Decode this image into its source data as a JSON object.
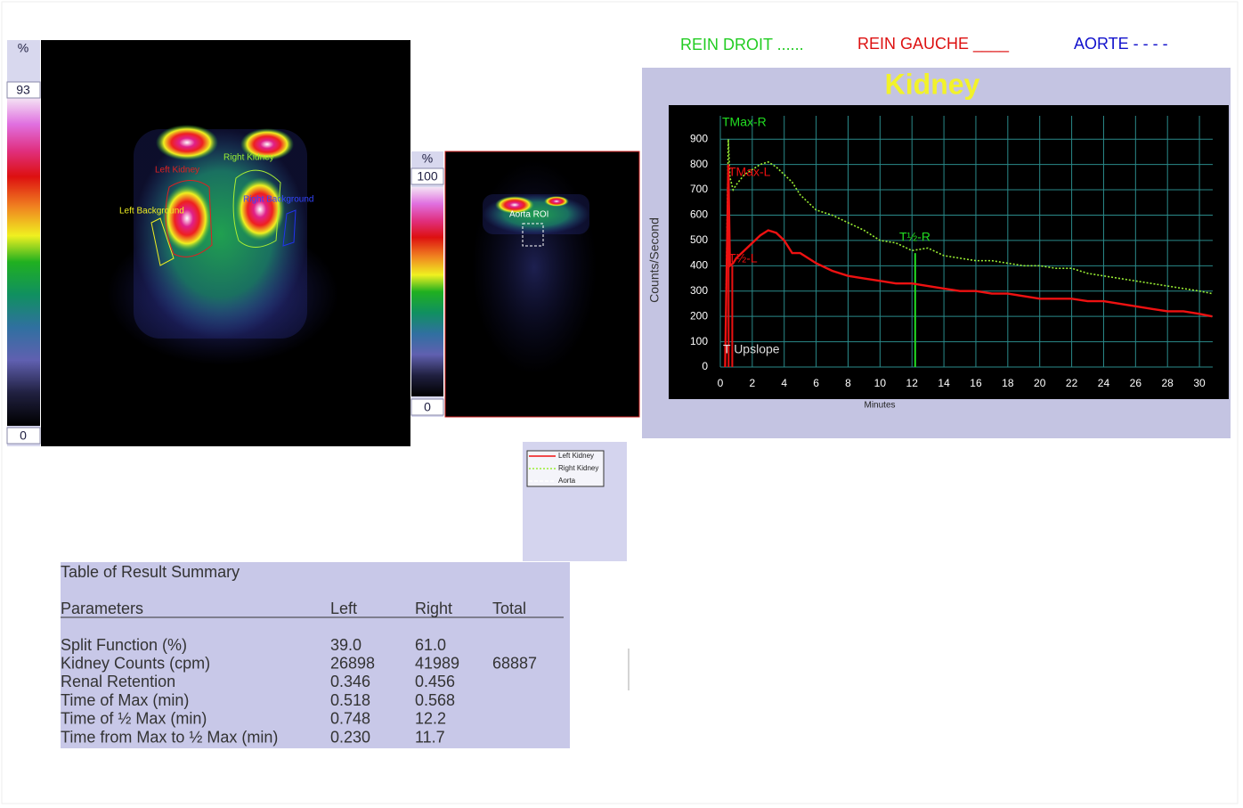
{
  "header": {
    "legend_labels": [
      {
        "text": "REIN DROIT ......",
        "color": "#22cc22"
      },
      {
        "text": "REIN GAUCHE ____",
        "color": "#dd1111"
      },
      {
        "text": "AORTE - - - -",
        "color": "#1111cc"
      }
    ]
  },
  "left_image": {
    "scale": {
      "unit": "%",
      "max": "93",
      "min": "0"
    },
    "roi_labels": [
      "Left Kidney",
      "Right Kidney",
      "Left Background",
      "Right Background"
    ]
  },
  "aorta_image": {
    "scale": {
      "unit": "%",
      "max": "100",
      "min": "0"
    },
    "roi_labels": [
      "Aorta ROI"
    ]
  },
  "chart_data": {
    "type": "line",
    "title": "Kidney",
    "y_label": "Counts/Second",
    "x_label": "Minutes",
    "x": [
      0.3,
      0.5,
      0.6,
      0.8,
      1,
      1.5,
      2,
      2.5,
      3,
      3.5,
      4,
      4.5,
      5,
      6,
      7,
      8,
      9,
      10,
      11,
      12,
      13,
      14,
      15,
      16,
      17,
      18,
      19,
      20,
      21,
      22,
      23,
      24,
      25,
      26,
      27,
      28,
      29,
      30,
      30.8
    ],
    "series": [
      {
        "name": "Right Kidney",
        "color": "#99ee33",
        "dash": true,
        "values": [
          0,
          900,
          750,
          700,
          720,
          760,
          780,
          800,
          810,
          790,
          760,
          730,
          680,
          620,
          600,
          570,
          540,
          500,
          490,
          460,
          470,
          440,
          430,
          420,
          420,
          410,
          400,
          400,
          390,
          390,
          370,
          360,
          350,
          340,
          330,
          320,
          310,
          300,
          290
        ]
      },
      {
        "name": "Left Kidney",
        "color": "#ee1111",
        "dash": false,
        "values": [
          0,
          800,
          400,
          410,
          430,
          460,
          490,
          520,
          540,
          530,
          500,
          450,
          450,
          410,
          380,
          360,
          350,
          340,
          330,
          330,
          320,
          310,
          300,
          300,
          290,
          290,
          280,
          270,
          270,
          270,
          260,
          260,
          250,
          240,
          230,
          220,
          220,
          210,
          200
        ]
      }
    ],
    "vlines": [
      {
        "x": 12.2,
        "y": 450,
        "color": "#22dd22"
      },
      {
        "x": 0.518,
        "y": 800,
        "color": "#ee1111"
      },
      {
        "x": 0.748,
        "y": 400,
        "color": "#ee1111"
      }
    ],
    "annotations": [
      {
        "text": "TMax-R",
        "color": "#22dd22"
      },
      {
        "text": "TMax-L",
        "color": "#ee1111"
      },
      {
        "text": "T½-R",
        "color": "#22dd22"
      },
      {
        "text": "T½-L",
        "color": "#ee1111"
      },
      {
        "text": "T Upslope",
        "color": "#dddddd"
      }
    ],
    "xlim": [
      0,
      31
    ],
    "ylim": [
      0,
      950
    ],
    "xticks": [
      0,
      2,
      4,
      6,
      8,
      10,
      12,
      14,
      16,
      18,
      20,
      22,
      24,
      26,
      28,
      30
    ],
    "yticks": [
      0,
      100,
      200,
      300,
      400,
      500,
      600,
      700,
      800,
      900
    ],
    "grid": true
  },
  "legend_box": {
    "items": [
      "Left Kidney",
      "Right Kidney",
      "Aorta"
    ]
  },
  "table": {
    "title": "Table of Result Summary",
    "headers": [
      "Parameters",
      "Left",
      "Right",
      "Total"
    ],
    "rows": [
      [
        "Split Function (%)",
        "39.0",
        "61.0"
      ],
      [
        "Kidney Counts (cpm)",
        "26898",
        "41989",
        "68887"
      ],
      [
        "Renal Retention",
        "0.346",
        "0.456"
      ],
      [
        "Time of Max (min)",
        "0.518",
        "0.568"
      ],
      [
        "Time of ½ Max (min)",
        "0.748",
        "12.2"
      ],
      [
        "Time from Max to ½ Max (min)",
        "0.230",
        "11.7"
      ]
    ]
  }
}
